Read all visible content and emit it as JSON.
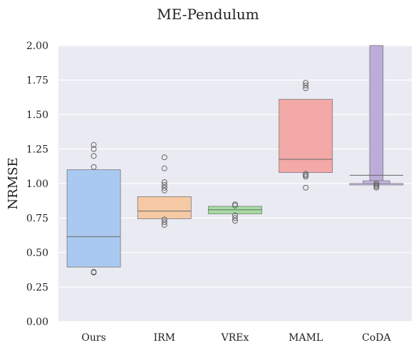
{
  "chart_data": {
    "type": "boxen",
    "title": "ME-Pendulum",
    "xlabel": "",
    "ylabel": "NRMSE",
    "ylim": [
      0.0,
      2.0
    ],
    "yticks": [
      "0.00",
      "0.25",
      "0.50",
      "0.75",
      "1.00",
      "1.25",
      "1.50",
      "1.75",
      "2.00"
    ],
    "grid": true,
    "categories": [
      "Ours",
      "IRM",
      "VREx",
      "MAML",
      "CoDA"
    ],
    "series": [
      {
        "category": "Ours",
        "color": "#a9c9f0",
        "median": 0.615,
        "levels": [
          [
            0.505,
            0.725
          ],
          [
            0.435,
            0.81
          ],
          [
            0.415,
            0.965
          ],
          [
            0.405,
            1.03
          ],
          [
            0.395,
            1.1
          ]
        ],
        "outliers": [
          0.355,
          0.36,
          1.12,
          1.2,
          1.25,
          1.28
        ]
      },
      {
        "category": "IRM",
        "color": "#f6c9a5",
        "median": 0.8,
        "levels": [
          [
            0.775,
            0.815
          ],
          [
            0.755,
            0.835
          ],
          [
            0.745,
            0.905
          ]
        ],
        "outliers": [
          0.7,
          0.72,
          0.74,
          0.95,
          0.97,
          0.99,
          1.01,
          1.11,
          1.19
        ]
      },
      {
        "category": "VREx",
        "color": "#a6dda2",
        "median": 0.81,
        "levels": [
          [
            0.8,
            0.825
          ],
          [
            0.79,
            0.83
          ],
          [
            0.78,
            0.835
          ]
        ],
        "outliers": [
          0.73,
          0.75,
          0.77,
          0.84,
          0.85
        ]
      },
      {
        "category": "MAML",
        "color": "#f3a9a8",
        "median": 1.175,
        "levels": [
          [
            1.135,
            1.245
          ],
          [
            1.095,
            1.345
          ],
          [
            1.08,
            1.61
          ]
        ],
        "outliers": [
          0.97,
          1.05,
          1.06,
          1.07,
          1.69,
          1.71,
          1.73
        ]
      },
      {
        "category": "CoDA",
        "color": "#d5c3f7",
        "median": 1.06,
        "levels": [
          [
            1.02,
            2.05
          ],
          [
            1.0,
            1.02
          ],
          [
            0.99,
            1.0
          ]
        ],
        "outliers": [
          0.97,
          0.98,
          0.99,
          1.0
        ]
      }
    ]
  }
}
